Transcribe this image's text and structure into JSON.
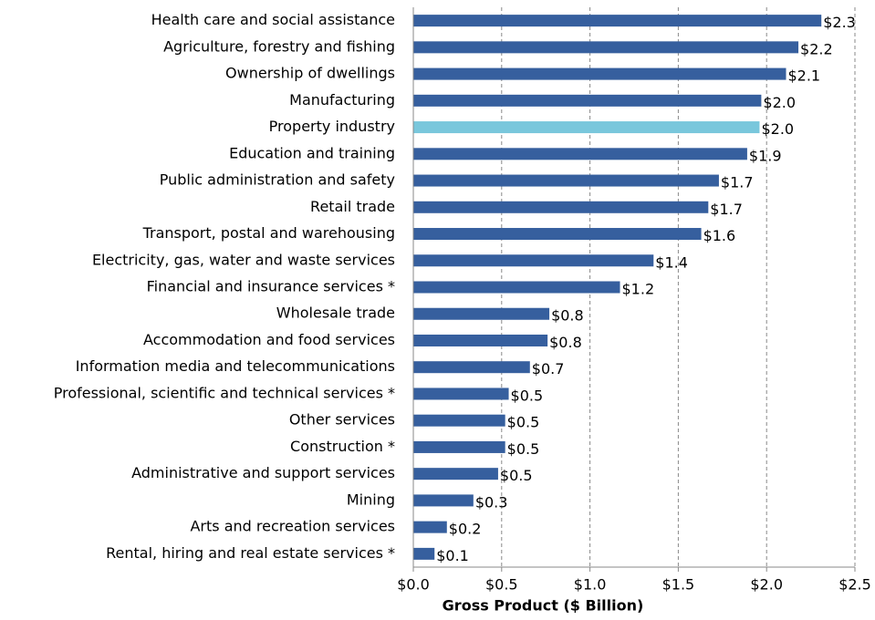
{
  "chart_data": {
    "type": "barh",
    "xlabel": "Gross Product ($ Billion)",
    "categories": [
      "Health care and social assistance",
      "Agriculture, forestry and fishing",
      "Ownership of dwellings",
      "Manufacturing",
      "Property industry",
      "Education and training",
      "Public administration and safety",
      "Retail trade",
      "Transport, postal and warehousing",
      "Electricity, gas, water and waste services",
      "Financial and insurance services *",
      "Wholesale trade",
      "Accommodation and food services",
      "Information media and telecommunications",
      "Professional, scientific and technical services *",
      "Other services",
      "Construction *",
      "Administrative and support services",
      "Mining",
      "Arts and recreation services",
      "Rental, hiring and real estate services *"
    ],
    "values": [
      2.31,
      2.18,
      2.11,
      1.97,
      1.96,
      1.89,
      1.73,
      1.67,
      1.63,
      1.36,
      1.17,
      0.77,
      0.76,
      0.66,
      0.54,
      0.52,
      0.52,
      0.48,
      0.34,
      0.19,
      0.12
    ],
    "value_labels": [
      "$2.3",
      "$2.2",
      "$2.1",
      "$2.0",
      "$2.0",
      "$1.9",
      "$1.7",
      "$1.7",
      "$1.6",
      "$1.4",
      "$1.2",
      "$0.8",
      "$0.8",
      "$0.7",
      "$0.5",
      "$0.5",
      "$0.5",
      "$0.5",
      "$0.3",
      "$0.2",
      "$0.1"
    ],
    "colors": [
      "#365f9e",
      "#365f9e",
      "#365f9e",
      "#365f9e",
      "#79c7dc",
      "#365f9e",
      "#365f9e",
      "#365f9e",
      "#365f9e",
      "#365f9e",
      "#365f9e",
      "#365f9e",
      "#365f9e",
      "#365f9e",
      "#365f9e",
      "#365f9e",
      "#365f9e",
      "#365f9e",
      "#365f9e",
      "#365f9e",
      "#365f9e"
    ],
    "xlim": [
      0,
      2.5
    ],
    "xticks": [
      {
        "value": 0,
        "label": "$0.0"
      },
      {
        "value": 0.5,
        "label": "$0.5"
      },
      {
        "value": 1,
        "label": "$1.0"
      },
      {
        "value": 1.5,
        "label": "$1.5"
      },
      {
        "value": 2,
        "label": "$2.0"
      },
      {
        "value": 2.5,
        "label": "$2.5"
      }
    ],
    "grid": true
  }
}
